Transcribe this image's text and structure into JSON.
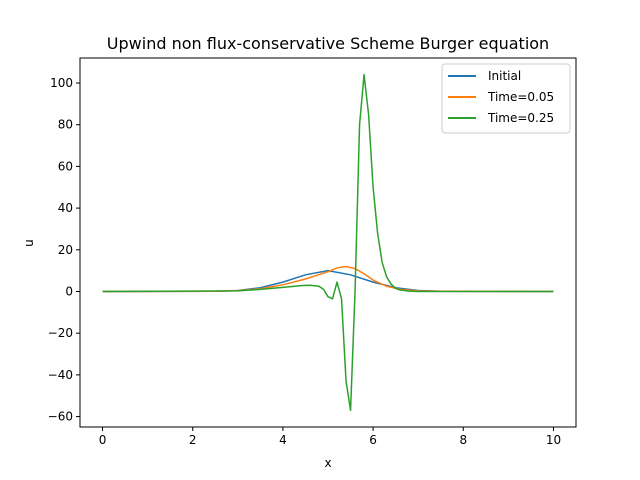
{
  "chart_data": {
    "type": "line",
    "title": "Upwind non flux-conservative Scheme Burger equation",
    "xlabel": "x",
    "ylabel": "u",
    "xlim": [
      -0.5,
      10.5
    ],
    "ylim": [
      -65,
      112
    ],
    "xticks": [
      0,
      2,
      4,
      6,
      8,
      10
    ],
    "yticks": [
      -60,
      -40,
      -20,
      0,
      20,
      40,
      60,
      80,
      100
    ],
    "grid": false,
    "legend_position": "top-right",
    "series": [
      {
        "name": "Initial",
        "color": "#1f77b4",
        "x": [
          0,
          2.5,
          3.0,
          3.5,
          4.0,
          4.5,
          5.0,
          5.5,
          6.0,
          6.5,
          7.0,
          7.5,
          10
        ],
        "y": [
          0,
          0.1,
          0.5,
          1.8,
          4.5,
          8.0,
          10.0,
          8.0,
          4.5,
          1.8,
          0.5,
          0.1,
          0
        ]
      },
      {
        "name": "Time=0.05",
        "color": "#ff7f0e",
        "x": [
          0,
          2.5,
          3.0,
          3.5,
          4.0,
          4.5,
          5.0,
          5.2,
          5.4,
          5.6,
          5.8,
          6.0,
          6.3,
          6.6,
          7.0,
          7.5,
          10
        ],
        "y": [
          0,
          0.1,
          0.4,
          1.3,
          3.2,
          6.0,
          9.5,
          11.3,
          12.0,
          11.0,
          8.5,
          5.5,
          2.5,
          1.0,
          0.3,
          0.1,
          0
        ]
      },
      {
        "name": "Time=0.25",
        "color": "#2ca02c",
        "x": [
          0,
          3.0,
          3.5,
          4.0,
          4.4,
          4.6,
          4.8,
          4.9,
          5.0,
          5.1,
          5.2,
          5.3,
          5.4,
          5.5,
          5.6,
          5.7,
          5.8,
          5.9,
          6.0,
          6.1,
          6.2,
          6.3,
          6.4,
          6.5,
          6.6,
          6.8,
          7.0,
          7.5,
          10
        ],
        "y": [
          0,
          0.3,
          1.0,
          2.0,
          2.8,
          3.0,
          2.5,
          1.0,
          -2.5,
          -3.5,
          4.5,
          -3.5,
          -43,
          -57,
          0,
          80,
          104,
          85,
          50,
          28,
          14,
          7,
          3.5,
          1.5,
          0.7,
          0.2,
          0,
          0,
          0
        ]
      }
    ]
  }
}
